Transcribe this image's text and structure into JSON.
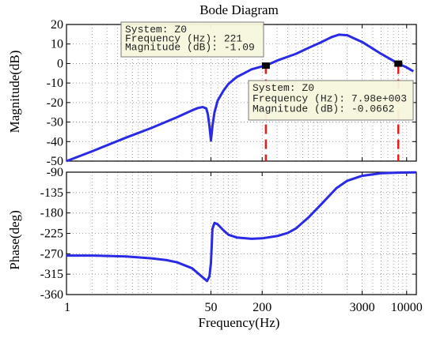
{
  "chart_data": {
    "type": "line",
    "title": "Bode Diagram",
    "xlabel": "Frequency(Hz)",
    "x_scale": "log",
    "xlim": [
      1,
      13000
    ],
    "x_ticks": [
      1,
      50,
      200,
      3000,
      10000
    ],
    "grid": true,
    "series_color": "#2a2ae6",
    "marker_color": "#e81c1c",
    "panels": [
      {
        "name": "magnitude",
        "ylabel": "Magnitude(dB)",
        "ylim": [
          -50,
          20
        ],
        "y_ticks": [
          20,
          10,
          0,
          -10,
          -20,
          -30,
          -40,
          -50
        ],
        "series": [
          {
            "x": [
              1,
              2,
              5,
              10,
              20,
              30,
              35,
              40,
              44,
              46,
              48,
              50,
              52,
              55,
              60,
              70,
              80,
              100,
              150,
              200,
              221,
              300,
              500,
              700,
              1000,
              1300,
              1600,
              2000,
              3000,
              5000,
              7980,
              10000,
              12000
            ],
            "y": [
              -50,
              -45,
              -38,
              -33,
              -27.5,
              -24,
              -22.8,
              -22.3,
              -23,
              -26,
              -32,
              -39.5,
              -32,
              -25,
              -19,
              -14,
              -10.5,
              -7,
              -3,
              -1.5,
              -1.09,
              1.5,
              5,
              8,
              11,
              13.5,
              14.8,
              14.5,
              11,
              5,
              -0.066,
              -2,
              -4
            ]
          }
        ],
        "datatips": [
          {
            "system": "System: Z0",
            "frequency": "Frequency (Hz): 221",
            "magnitude": "Magnitude (dB): -1.09",
            "x": 221,
            "y": -1.09
          },
          {
            "system": "System: Z0",
            "frequency": "Frequency (Hz): 7.98e+003",
            "magnitude": "Magnitude (dB): -0.0662",
            "x": 7980,
            "y": -0.0662
          }
        ],
        "vertical_markers": [
          221,
          7980
        ]
      },
      {
        "name": "phase",
        "ylabel": "Phase(deg)",
        "ylim": [
          -360,
          -90
        ],
        "y_ticks": [
          -90,
          -135,
          -180,
          -225,
          -270,
          -315,
          -360
        ],
        "series": [
          {
            "x": [
              1,
              2,
              5,
              10,
              15,
              20,
              30,
              40,
              45,
              48,
              50,
              52,
              55,
              60,
              70,
              80,
              100,
              150,
              200,
              300,
              400,
              500,
              700,
              1000,
              1500,
              2000,
              3000,
              5000,
              8000,
              13000
            ],
            "y": [
              -274,
              -274,
              -276,
              -280,
              -284,
              -289,
              -302,
              -322,
              -330,
              -320,
              -290,
              -215,
              -202,
              -205,
              -218,
              -228,
              -234,
              -237,
              -236,
              -231,
              -224,
              -214,
              -190,
              -160,
              -125,
              -109,
              -98,
              -92.5,
              -91,
              -90.5
            ]
          }
        ]
      }
    ]
  }
}
